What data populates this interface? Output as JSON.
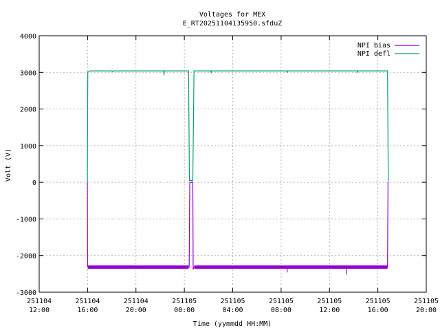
{
  "chart_data": {
    "type": "line",
    "title": "Voltages for MEX",
    "subtitle": "E_RT20251104135950.sfduZ",
    "xlabel": "Time (yymmdd HH:MM)",
    "ylabel": "Volt (V)",
    "ylim": [
      -3000,
      4000
    ],
    "xlim_hours": [
      0,
      32
    ],
    "grid": true,
    "legend_position": "top-right",
    "y_ticks": [
      -3000,
      -2000,
      -1000,
      0,
      1000,
      2000,
      3000,
      4000
    ],
    "y_tick_labels": [
      "-3000",
      "-2000",
      "-1000",
      "0",
      "1000",
      "2000",
      "3000",
      "4000"
    ],
    "x_ticks": [
      {
        "hours": 0,
        "date": "251104",
        "time": "12:00"
      },
      {
        "hours": 4,
        "date": "251104",
        "time": "16:00"
      },
      {
        "hours": 8,
        "date": "251104",
        "time": "20:00"
      },
      {
        "hours": 12,
        "date": "251105",
        "time": "00:00"
      },
      {
        "hours": 16,
        "date": "251105",
        "time": "04:00"
      },
      {
        "hours": 20,
        "date": "251105",
        "time": "08:00"
      },
      {
        "hours": 24,
        "date": "251105",
        "time": "12:00"
      },
      {
        "hours": 28,
        "date": "251105",
        "time": "16:00"
      },
      {
        "hours": 32,
        "date": "251105",
        "time": "20:00"
      }
    ],
    "series": [
      {
        "name": "NPI bias",
        "color": "#9400d3",
        "x_hours": [
          3.98,
          4.0,
          4.02,
          12.35,
          12.4,
          12.45,
          12.7,
          12.73,
          12.78,
          12.82,
          20.5,
          20.5,
          20.5,
          25.4,
          25.4,
          25.4,
          28.8,
          28.84,
          28.88
        ],
        "values": [
          0,
          -2300,
          -2310,
          -2310,
          -2320,
          0,
          0,
          -2380,
          -2320,
          -2310,
          -2310,
          -2460,
          -2310,
          -2310,
          -2520,
          -2310,
          -2310,
          0,
          0
        ],
        "band_low": -2360,
        "band_high": -2270,
        "band_ranges_hours": [
          [
            4.02,
            12.35
          ],
          [
            12.82,
            28.8
          ]
        ]
      },
      {
        "name": "NPI defl",
        "color": "#009e73",
        "x_hours": [
          3.98,
          4.02,
          4.2,
          6.0,
          6.05,
          6.1,
          10.3,
          10.32,
          10.34,
          12.35,
          12.42,
          12.7,
          12.8,
          12.85,
          14.2,
          14.22,
          14.24,
          20.5,
          20.52,
          20.54,
          26.3,
          26.32,
          26.34,
          28.8,
          28.86
        ],
        "values": [
          0,
          3010,
          3040,
          3040,
          3020,
          3040,
          3040,
          2920,
          3040,
          3040,
          50,
          50,
          3040,
          3040,
          3040,
          2980,
          3040,
          3040,
          2990,
          3040,
          3040,
          2990,
          3040,
          3040,
          30
        ]
      }
    ]
  }
}
